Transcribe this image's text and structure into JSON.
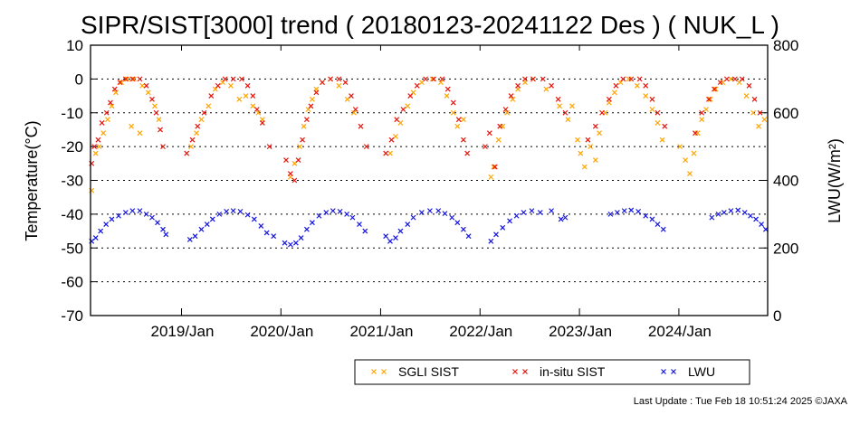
{
  "page": {
    "footer": "Last Update : Tue Feb 18 10:51:24 2025  ©JAXA"
  },
  "chart_data": {
    "type": "scatter",
    "title": "SIPR/SIST[3000] trend ( 20180123-20241122 Des ) ( NUK_L )",
    "ylabel": "Temperature(°C)",
    "y2label": "LWU(W/m²)",
    "ylim": [
      -70,
      10
    ],
    "y2lim": [
      0,
      800
    ],
    "xlim": [
      "2018-02-01",
      "2024-11-22"
    ],
    "yticks": [
      "10",
      "0",
      "-10",
      "-20",
      "-30",
      "-40",
      "-50",
      "-60",
      "-70"
    ],
    "y2ticks": [
      "800",
      "600",
      "400",
      "200",
      "0"
    ],
    "xticks": [
      "2019/Jan",
      "2020/Jan",
      "2021/Jan",
      "2022/Jan",
      "2023/Jan",
      "2024/Jan"
    ],
    "grid": "horizontal dotted",
    "legend_position": "bottom",
    "colors": {
      "sgli": "#ffa500",
      "insitu": "#e8140c",
      "lwu": "#1414e0"
    },
    "series": [
      {
        "name": "SGLI SIST",
        "axis": "left",
        "points": [
          [
            "2018-02-05",
            -33
          ],
          [
            "2018-02-20",
            -22
          ],
          [
            "2018-03-05",
            -20
          ],
          [
            "2018-03-20",
            -16
          ],
          [
            "2018-04-05",
            -12
          ],
          [
            "2018-04-20",
            -8
          ],
          [
            "2018-05-05",
            -4
          ],
          [
            "2018-05-25",
            -1
          ],
          [
            "2018-06-15",
            0
          ],
          [
            "2018-07-10",
            0
          ],
          [
            "2018-08-10",
            -2
          ],
          [
            "2018-09-01",
            -4
          ],
          [
            "2018-09-25",
            -8
          ],
          [
            "2018-10-10",
            -12
          ],
          [
            "2018-07-01",
            -14
          ],
          [
            "2018-08-01",
            -16
          ],
          [
            "2019-02-05",
            -20
          ],
          [
            "2019-02-25",
            -16
          ],
          [
            "2019-03-15",
            -12
          ],
          [
            "2019-04-10",
            -8
          ],
          [
            "2019-05-05",
            -3
          ],
          [
            "2019-06-01",
            -1
          ],
          [
            "2019-07-01",
            -2
          ],
          [
            "2019-08-01",
            -6
          ],
          [
            "2019-08-25",
            -5
          ],
          [
            "2019-09-20",
            -8
          ],
          [
            "2019-10-10",
            -10
          ],
          [
            "2019-10-25",
            -12
          ],
          [
            "2020-02-05",
            -29
          ],
          [
            "2020-02-20",
            -25
          ],
          [
            "2020-03-10",
            -20
          ],
          [
            "2020-03-25",
            -14
          ],
          [
            "2020-04-10",
            -9
          ],
          [
            "2020-04-25",
            -6
          ],
          [
            "2020-05-10",
            -3
          ],
          [
            "2020-06-01",
            -1
          ],
          [
            "2020-07-01",
            0
          ],
          [
            "2020-08-01",
            -2
          ],
          [
            "2020-09-01",
            -6
          ],
          [
            "2020-09-25",
            -10
          ],
          [
            "2021-02-05",
            -22
          ],
          [
            "2021-02-25",
            -17
          ],
          [
            "2021-03-15",
            -13
          ],
          [
            "2021-04-10",
            -8
          ],
          [
            "2021-05-01",
            -4
          ],
          [
            "2021-06-01",
            -1
          ],
          [
            "2021-07-10",
            0
          ],
          [
            "2021-08-10",
            -1
          ],
          [
            "2021-09-01",
            -5
          ],
          [
            "2021-09-25",
            -10
          ],
          [
            "2021-10-10",
            -14
          ],
          [
            "2021-11-01",
            -12
          ],
          [
            "2022-02-10",
            -29
          ],
          [
            "2022-02-20",
            -26
          ],
          [
            "2022-03-10",
            -18
          ],
          [
            "2022-03-25",
            -14
          ],
          [
            "2022-04-10",
            -10
          ],
          [
            "2022-05-01",
            -6
          ],
          [
            "2022-05-20",
            -3
          ],
          [
            "2022-06-15",
            -1
          ],
          [
            "2022-07-15",
            0
          ],
          [
            "2022-09-01",
            -3
          ],
          [
            "2022-10-20",
            -8
          ],
          [
            "2022-11-20",
            -12
          ],
          [
            "2022-12-05",
            -8
          ],
          [
            "2022-12-25",
            -18
          ],
          [
            "2023-01-05",
            -22
          ],
          [
            "2023-01-20",
            -26
          ],
          [
            "2023-02-10",
            -20
          ],
          [
            "2023-03-01",
            -24
          ],
          [
            "2023-03-15",
            -16
          ],
          [
            "2023-04-05",
            -10
          ],
          [
            "2023-04-20",
            -7
          ],
          [
            "2023-05-10",
            -4
          ],
          [
            "2023-06-01",
            -1
          ],
          [
            "2023-07-01",
            0
          ],
          [
            "2023-08-01",
            -2
          ],
          [
            "2023-09-01",
            -5
          ],
          [
            "2023-09-25",
            -9
          ],
          [
            "2023-10-15",
            -13
          ],
          [
            "2023-11-01",
            -18
          ],
          [
            "2024-01-05",
            -20
          ],
          [
            "2024-01-25",
            -24
          ],
          [
            "2024-02-10",
            -28
          ],
          [
            "2024-02-25",
            -22
          ],
          [
            "2024-03-10",
            -16
          ],
          [
            "2024-03-25",
            -12
          ],
          [
            "2024-04-10",
            -9
          ],
          [
            "2024-04-25",
            -6
          ],
          [
            "2024-05-15",
            -3
          ],
          [
            "2024-06-10",
            -1
          ],
          [
            "2024-07-10",
            0
          ],
          [
            "2024-08-10",
            -1
          ],
          [
            "2024-09-05",
            -5
          ],
          [
            "2024-09-30",
            -10
          ],
          [
            "2024-10-20",
            -14
          ],
          [
            "2024-11-10",
            -12
          ]
        ]
      },
      {
        "name": "in-situ SIST",
        "axis": "left",
        "points": [
          [
            "2018-02-05",
            -25
          ],
          [
            "2018-02-15",
            -20
          ],
          [
            "2018-03-01",
            -18
          ],
          [
            "2018-03-15",
            -13
          ],
          [
            "2018-04-01",
            -10
          ],
          [
            "2018-04-15",
            -7
          ],
          [
            "2018-05-01",
            -3
          ],
          [
            "2018-05-20",
            -1
          ],
          [
            "2018-06-10",
            0
          ],
          [
            "2018-07-05",
            0
          ],
          [
            "2018-08-01",
            0
          ],
          [
            "2018-08-25",
            -2
          ],
          [
            "2018-09-15",
            -6
          ],
          [
            "2018-09-30",
            -10
          ],
          [
            "2018-10-15",
            -15
          ],
          [
            "2018-10-25",
            -20
          ],
          [
            "2019-01-20",
            -22
          ],
          [
            "2019-02-10",
            -18
          ],
          [
            "2019-03-01",
            -14
          ],
          [
            "2019-03-25",
            -10
          ],
          [
            "2019-04-20",
            -5
          ],
          [
            "2019-05-15",
            -2
          ],
          [
            "2019-06-10",
            0
          ],
          [
            "2019-07-10",
            0
          ],
          [
            "2019-08-10",
            0
          ],
          [
            "2019-09-01",
            -2
          ],
          [
            "2019-09-20",
            -5
          ],
          [
            "2019-10-05",
            -9
          ],
          [
            "2019-10-25",
            -13
          ],
          [
            "2019-11-20",
            -20
          ],
          [
            "2020-01-20",
            -24
          ],
          [
            "2020-02-05",
            -28
          ],
          [
            "2020-02-20",
            -30
          ],
          [
            "2020-03-05",
            -24
          ],
          [
            "2020-03-20",
            -18
          ],
          [
            "2020-04-05",
            -12
          ],
          [
            "2020-04-20",
            -8
          ],
          [
            "2020-05-10",
            -4
          ],
          [
            "2020-06-01",
            -1
          ],
          [
            "2020-07-01",
            0
          ],
          [
            "2020-08-01",
            0
          ],
          [
            "2020-08-25",
            -1
          ],
          [
            "2020-09-15",
            -5
          ],
          [
            "2020-10-01",
            -9
          ],
          [
            "2020-10-20",
            -14
          ],
          [
            "2020-11-10",
            -20
          ],
          [
            "2021-01-20",
            -22
          ],
          [
            "2021-02-10",
            -18
          ],
          [
            "2021-03-01",
            -12
          ],
          [
            "2021-03-25",
            -9
          ],
          [
            "2021-04-20",
            -5
          ],
          [
            "2021-05-15",
            -2
          ],
          [
            "2021-06-15",
            0
          ],
          [
            "2021-07-15",
            0
          ],
          [
            "2021-08-15",
            0
          ],
          [
            "2021-09-05",
            -3
          ],
          [
            "2021-09-25",
            -7
          ],
          [
            "2021-10-15",
            -12
          ],
          [
            "2021-11-01",
            -18
          ],
          [
            "2021-11-15",
            -22
          ],
          [
            "2022-01-20",
            -20
          ],
          [
            "2022-02-05",
            -16
          ],
          [
            "2022-02-25",
            -26
          ],
          [
            "2022-03-15",
            -14
          ],
          [
            "2022-04-05",
            -9
          ],
          [
            "2022-04-25",
            -5
          ],
          [
            "2022-05-20",
            -2
          ],
          [
            "2022-06-15",
            0
          ],
          [
            "2022-07-15",
            0
          ],
          [
            "2022-08-20",
            0
          ],
          [
            "2022-09-20",
            -2
          ],
          [
            "2022-10-15",
            -6
          ],
          [
            "2022-11-10",
            -10
          ],
          [
            "2023-02-01",
            -18
          ],
          [
            "2023-03-01",
            -14
          ],
          [
            "2023-03-25",
            -10
          ],
          [
            "2023-04-20",
            -6
          ],
          [
            "2023-05-15",
            -2
          ],
          [
            "2023-06-10",
            0
          ],
          [
            "2023-07-10",
            0
          ],
          [
            "2023-08-10",
            0
          ],
          [
            "2023-09-01",
            -2
          ],
          [
            "2023-09-25",
            -6
          ],
          [
            "2023-10-15",
            -10
          ],
          [
            "2023-11-10",
            -14
          ],
          [
            "2024-03-01",
            -16
          ],
          [
            "2024-03-25",
            -10
          ],
          [
            "2024-04-20",
            -6
          ],
          [
            "2024-05-10",
            -3
          ],
          [
            "2024-06-01",
            -1
          ],
          [
            "2024-06-25",
            0
          ],
          [
            "2024-07-25",
            0
          ],
          [
            "2024-08-20",
            0
          ],
          [
            "2024-09-15",
            -2
          ],
          [
            "2024-10-05",
            -6
          ],
          [
            "2024-10-25",
            -10
          ]
        ]
      },
      {
        "name": "LWU",
        "axis": "right",
        "points": [
          [
            "2018-02-05",
            220
          ],
          [
            "2018-02-20",
            230
          ],
          [
            "2018-03-10",
            250
          ],
          [
            "2018-03-30",
            270
          ],
          [
            "2018-04-20",
            285
          ],
          [
            "2018-05-15",
            295
          ],
          [
            "2018-06-10",
            305
          ],
          [
            "2018-07-05",
            310
          ],
          [
            "2018-08-01",
            310
          ],
          [
            "2018-08-25",
            300
          ],
          [
            "2018-09-15",
            290
          ],
          [
            "2018-10-05",
            275
          ],
          [
            "2018-10-25",
            255
          ],
          [
            "2018-11-05",
            240
          ],
          [
            "2019-02-01",
            225
          ],
          [
            "2019-02-20",
            235
          ],
          [
            "2019-03-15",
            255
          ],
          [
            "2019-04-05",
            270
          ],
          [
            "2019-04-25",
            285
          ],
          [
            "2019-05-20",
            300
          ],
          [
            "2019-06-15",
            308
          ],
          [
            "2019-07-10",
            310
          ],
          [
            "2019-08-05",
            308
          ],
          [
            "2019-09-01",
            298
          ],
          [
            "2019-09-25",
            285
          ],
          [
            "2019-10-20",
            265
          ],
          [
            "2019-11-10",
            245
          ],
          [
            "2019-12-05",
            235
          ],
          [
            "2020-01-15",
            215
          ],
          [
            "2020-02-05",
            210
          ],
          [
            "2020-02-25",
            215
          ],
          [
            "2020-03-15",
            230
          ],
          [
            "2020-04-05",
            255
          ],
          [
            "2020-04-25",
            275
          ],
          [
            "2020-05-20",
            295
          ],
          [
            "2020-06-15",
            305
          ],
          [
            "2020-07-10",
            310
          ],
          [
            "2020-08-05",
            308
          ],
          [
            "2020-08-30",
            300
          ],
          [
            "2020-09-20",
            290
          ],
          [
            "2020-10-15",
            270
          ],
          [
            "2020-11-05",
            250
          ],
          [
            "2021-01-20",
            235
          ],
          [
            "2021-02-05",
            220
          ],
          [
            "2021-02-25",
            230
          ],
          [
            "2021-03-15",
            250
          ],
          [
            "2021-04-10",
            270
          ],
          [
            "2021-05-01",
            290
          ],
          [
            "2021-06-01",
            305
          ],
          [
            "2021-07-01",
            310
          ],
          [
            "2021-08-01",
            310
          ],
          [
            "2021-08-25",
            302
          ],
          [
            "2021-09-20",
            290
          ],
          [
            "2021-10-10",
            275
          ],
          [
            "2021-11-01",
            255
          ],
          [
            "2021-11-20",
            235
          ],
          [
            "2022-02-10",
            220
          ],
          [
            "2022-03-01",
            240
          ],
          [
            "2022-03-25",
            260
          ],
          [
            "2022-04-20",
            280
          ],
          [
            "2022-05-15",
            295
          ],
          [
            "2022-06-10",
            305
          ],
          [
            "2022-07-10",
            310
          ],
          [
            "2022-08-10",
            305
          ],
          [
            "2022-09-20",
            310
          ],
          [
            "2022-10-25",
            285
          ],
          [
            "2022-11-10",
            290
          ],
          [
            "2023-04-25",
            300
          ],
          [
            "2023-05-20",
            305
          ],
          [
            "2023-06-15",
            310
          ],
          [
            "2023-07-10",
            312
          ],
          [
            "2023-08-05",
            308
          ],
          [
            "2023-09-01",
            295
          ],
          [
            "2023-09-25",
            285
          ],
          [
            "2023-10-15",
            270
          ],
          [
            "2023-11-05",
            255
          ],
          [
            "2024-05-01",
            290
          ],
          [
            "2024-05-25",
            300
          ],
          [
            "2024-06-15",
            305
          ],
          [
            "2024-07-10",
            310
          ],
          [
            "2024-08-05",
            312
          ],
          [
            "2024-08-30",
            305
          ],
          [
            "2024-09-20",
            295
          ],
          [
            "2024-10-10",
            285
          ],
          [
            "2024-10-30",
            270
          ],
          [
            "2024-11-15",
            255
          ]
        ]
      }
    ]
  }
}
